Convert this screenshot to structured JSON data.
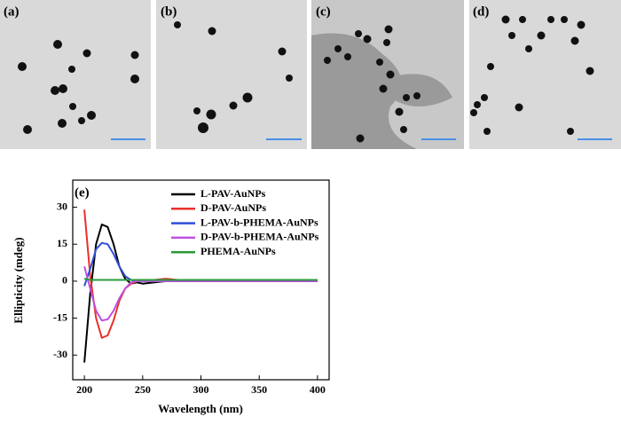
{
  "panels": [
    {
      "label": "(a)"
    },
    {
      "label": "(b)"
    },
    {
      "label": "(c)"
    },
    {
      "label": "(d)"
    }
  ],
  "chart_data": {
    "type": "line",
    "panel_label": "(e)",
    "xlabel": "Wavelength (nm)",
    "ylabel": "Ellipticity (mdeg)",
    "x": [
      200,
      205,
      210,
      215,
      220,
      225,
      230,
      235,
      240,
      245,
      250,
      260,
      270,
      280,
      300,
      320,
      350,
      380,
      400
    ],
    "series": [
      {
        "name": "L-PAV-AuNPs",
        "color": "#000000",
        "values": [
          -33,
          -5,
          15,
          23,
          22,
          15,
          6,
          1,
          -1,
          -0.5,
          -1,
          -0.5,
          0,
          0,
          0,
          0,
          0,
          0,
          0
        ]
      },
      {
        "name": "D-PAV-AuNPs",
        "color": "#e8302a",
        "values": [
          29,
          2,
          -15,
          -23,
          -22,
          -16,
          -8,
          -3,
          -1,
          0,
          0.5,
          0.5,
          1,
          0.5,
          0,
          0,
          0,
          0,
          0
        ]
      },
      {
        "name": "L-PAV-b-PHEMA-AuNPs",
        "color": "#2f4fd8",
        "values": [
          -2,
          5,
          13,
          15.5,
          15,
          11,
          6,
          2,
          0.5,
          0,
          0,
          0,
          0,
          0,
          0,
          0,
          0,
          0,
          0
        ]
      },
      {
        "name": "D-PAV-b-PHEMA-AuNPs",
        "color": "#c050e0",
        "values": [
          6,
          -3,
          -12,
          -16,
          -15.5,
          -12,
          -7,
          -3,
          -0.5,
          0,
          0,
          0,
          0,
          0,
          0,
          0,
          0,
          0,
          0
        ]
      },
      {
        "name": "PHEMA-AuNPs",
        "color": "#2a9a3a",
        "values": [
          1,
          0.5,
          0.5,
          0.5,
          0.5,
          0.5,
          0.5,
          0.5,
          0.5,
          0.5,
          0.5,
          0.5,
          0.5,
          0.5,
          0.5,
          0.5,
          0.5,
          0.5,
          0.5
        ]
      }
    ],
    "xlim": [
      190,
      410
    ],
    "xticks": [
      200,
      250,
      300,
      350,
      400
    ],
    "ylim": [
      -40,
      41
    ],
    "yticks": [
      30,
      15,
      0,
      -15,
      -30
    ]
  }
}
